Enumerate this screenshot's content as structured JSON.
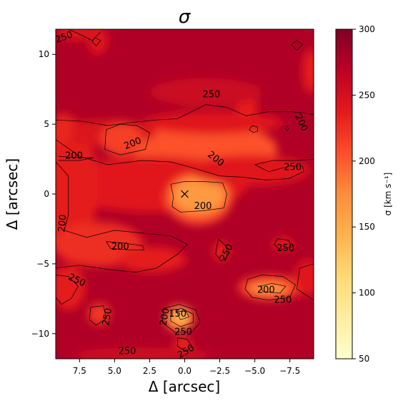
{
  "chart_data": {
    "type": "heatmap",
    "title": "σ",
    "xlabel": "Δ [arcsec]",
    "ylabel": "Δ [arcsec]",
    "xlim": [
      9.2,
      -9.2
    ],
    "ylim": [
      -11.8,
      11.8
    ],
    "x_ticks": [
      {
        "value": 7.5,
        "label": "7.5"
      },
      {
        "value": 5.0,
        "label": "5.0"
      },
      {
        "value": 2.5,
        "label": "2.5"
      },
      {
        "value": 0.0,
        "label": "0.0"
      },
      {
        "value": -2.5,
        "label": "−2.5"
      },
      {
        "value": -5.0,
        "label": "−5.0"
      },
      {
        "value": -7.5,
        "label": "−7.5"
      }
    ],
    "y_ticks": [
      {
        "value": 10,
        "label": "10"
      },
      {
        "value": 5,
        "label": "5"
      },
      {
        "value": 0,
        "label": "0"
      },
      {
        "value": -5,
        "label": "−5"
      },
      {
        "value": -10,
        "label": "−10"
      }
    ],
    "colorbar": {
      "label": "σ [km s⁻¹]",
      "range": [
        50,
        300
      ],
      "cmap": "YlOrRd",
      "ticks": [
        {
          "value": 300,
          "label": "300"
        },
        {
          "value": 250,
          "label": "250"
        },
        {
          "value": 200,
          "label": "200"
        },
        {
          "value": 150,
          "label": "150"
        },
        {
          "value": 100,
          "label": "100"
        },
        {
          "value": 50,
          "label": "50"
        }
      ]
    },
    "background_value": 275,
    "regions": [
      {
        "shape": "ellipse",
        "cx": -1.4,
        "cy": 3.2,
        "rx": 5.2,
        "ry": 1.9,
        "value": 205
      },
      {
        "shape": "ellipse",
        "cx": -2.0,
        "cy": 5.1,
        "rx": 5.0,
        "ry": 0.8,
        "value": 240
      },
      {
        "shape": "ellipse",
        "cx": 2.3,
        "cy": 0.7,
        "rx": 6.8,
        "ry": 2.0,
        "value": 240
      },
      {
        "shape": "ellipse",
        "cx": 8.4,
        "cy": 0.6,
        "rx": 2.2,
        "ry": 5.0,
        "value": 235
      },
      {
        "shape": "ellipse",
        "cx": 5.6,
        "cy": 4.4,
        "rx": 3.6,
        "ry": 0.9,
        "value": 245
      },
      {
        "shape": "ellipse",
        "cx": 4.5,
        "cy": 3.9,
        "rx": 1.5,
        "ry": 1.2,
        "value": 215
      },
      {
        "shape": "ellipse",
        "cx": 6.2,
        "cy": -3.6,
        "rx": 3.2,
        "ry": 1.6,
        "value": 225
      },
      {
        "shape": "ellipse",
        "cx": -1.0,
        "cy": -0.3,
        "rx": 2.4,
        "ry": 1.9,
        "value": 205
      },
      {
        "shape": "ellipse",
        "cx": -1.0,
        "cy": -0.1,
        "rx": 1.9,
        "ry": 1.3,
        "value": 165
      },
      {
        "shape": "ellipse",
        "cx": -4.6,
        "cy": 1.7,
        "rx": 4.3,
        "ry": 1.1,
        "value": 240
      },
      {
        "shape": "ellipse",
        "cx": 2.3,
        "cy": -4.7,
        "rx": 2.4,
        "ry": 0.9,
        "value": 235
      },
      {
        "shape": "ellipse",
        "cx": 8.3,
        "cy": -6.7,
        "rx": 1.2,
        "ry": 1.6,
        "value": 235
      },
      {
        "shape": "ellipse",
        "cx": -6.1,
        "cy": -6.7,
        "rx": 2.3,
        "ry": 0.9,
        "value": 215
      },
      {
        "shape": "ellipse",
        "cx": -6.0,
        "cy": -6.8,
        "rx": 1.4,
        "ry": 0.5,
        "value": 175
      },
      {
        "shape": "ellipse",
        "cx": 0.4,
        "cy": -8.9,
        "rx": 1.0,
        "ry": 0.9,
        "value": 170
      },
      {
        "shape": "ellipse",
        "cx": 0.2,
        "cy": -8.7,
        "rx": 0.5,
        "ry": 0.4,
        "value": 135
      },
      {
        "shape": "ellipse",
        "cx": 6.1,
        "cy": -8.6,
        "rx": 0.8,
        "ry": 0.8,
        "value": 220
      },
      {
        "shape": "ellipse",
        "cx": -8.8,
        "cy": -6.0,
        "rx": 1.0,
        "ry": 1.3,
        "value": 240
      },
      {
        "shape": "ellipse",
        "cx": -2.6,
        "cy": -4.1,
        "rx": 0.6,
        "ry": 0.7,
        "value": 235
      },
      {
        "shape": "ellipse",
        "cx": -7.0,
        "cy": -3.6,
        "rx": 0.8,
        "ry": 0.5,
        "value": 240
      },
      {
        "shape": "ellipse",
        "cx": 0.1,
        "cy": -10.8,
        "rx": 0.6,
        "ry": 0.6,
        "value": 230
      },
      {
        "shape": "ellipse",
        "cx": 8.7,
        "cy": 4.7,
        "rx": 0.7,
        "ry": 1.1,
        "value": 230
      },
      {
        "shape": "ellipse",
        "cx": 6.2,
        "cy": 11.0,
        "rx": 0.7,
        "ry": 1.0,
        "value": 240
      },
      {
        "shape": "ellipse",
        "cx": -4.4,
        "cy": 6.3,
        "rx": 0.8,
        "ry": 0.9,
        "value": 235
      },
      {
        "shape": "ellipse",
        "cx": -9.0,
        "cy": 8.8,
        "rx": 0.6,
        "ry": 1.6,
        "value": 235
      },
      {
        "shape": "ellipse",
        "cx": 3.0,
        "cy": -11.5,
        "rx": 5.0,
        "ry": 0.5,
        "value": 255
      },
      {
        "shape": "ellipse",
        "cx": 7.7,
        "cy": 11.6,
        "rx": 1.5,
        "ry": 0.6,
        "value": 245
      },
      {
        "shape": "ellipse",
        "cx": -1.5,
        "cy": 7.3,
        "rx": 4.0,
        "ry": 1.0,
        "value": 258
      }
    ],
    "contours": [
      {
        "level": 250,
        "points": [
          [
            9.2,
            5.3
          ],
          [
            7.2,
            5.2
          ],
          [
            5.5,
            4.9
          ],
          [
            4.0,
            5.1
          ],
          [
            2.0,
            5.3
          ],
          [
            0.5,
            5.4
          ],
          [
            -1.5,
            6.4
          ],
          [
            -3.0,
            6.2
          ],
          [
            -4.4,
            5.6
          ],
          [
            -6.0,
            5.9
          ],
          [
            -7.6,
            5.9
          ],
          [
            -9.2,
            5.7
          ]
        ]
      },
      {
        "level": 250,
        "points": [
          [
            9.2,
            3.9
          ],
          [
            7.5,
            2.7
          ],
          [
            5.5,
            2.1
          ],
          [
            3.0,
            2.4
          ],
          [
            1.0,
            2.3
          ],
          [
            -0.5,
            1.9
          ],
          [
            -2.5,
            1.3
          ],
          [
            -4.2,
            1.2
          ],
          [
            -5.8,
            1.0
          ],
          [
            -7.4,
            1.1
          ],
          [
            -8.5,
            1.6
          ],
          [
            -8.4,
            2.0
          ],
          [
            -7.5,
            2.0
          ],
          [
            -6.0,
            1.6
          ],
          [
            -5.0,
            2.1
          ],
          [
            -6.3,
            2.4
          ],
          [
            -8.0,
            2.4
          ],
          [
            -9.2,
            2.5
          ]
        ]
      },
      {
        "level": 200,
        "points": [
          [
            9.0,
            2.7
          ],
          [
            7.5,
            2.6
          ],
          [
            6.5,
            2.6
          ],
          [
            7.5,
            2.4
          ],
          [
            9.0,
            2.4
          ]
        ]
      },
      {
        "level": 250,
        "points": [
          [
            9.2,
            2.3
          ],
          [
            8.3,
            1.3
          ],
          [
            8.3,
            -1.5
          ],
          [
            8.6,
            -2.6
          ],
          [
            7.0,
            -3.1
          ],
          [
            5.0,
            -2.6
          ],
          [
            3.0,
            -2.8
          ],
          [
            1.0,
            -3.0
          ],
          [
            -0.2,
            -3.6
          ],
          [
            0.5,
            -4.3
          ],
          [
            2.0,
            -5.3
          ],
          [
            3.5,
            -5.6
          ],
          [
            5.5,
            -5.4
          ],
          [
            7.5,
            -5.1
          ],
          [
            9.2,
            -5.3
          ]
        ]
      },
      {
        "level": 200,
        "points": [
          [
            4.6,
            5.0
          ],
          [
            5.6,
            4.6
          ],
          [
            5.7,
            3.2
          ],
          [
            4.6,
            2.8
          ],
          [
            2.8,
            3.2
          ],
          [
            2.5,
            4.4
          ],
          [
            3.4,
            4.9
          ],
          [
            4.6,
            5.0
          ]
        ]
      },
      {
        "level": 200,
        "points": [
          [
            1.0,
            0.7
          ],
          [
            0.8,
            -0.2
          ],
          [
            0.9,
            -0.9
          ],
          [
            0.3,
            -1.3
          ],
          [
            -1.3,
            -1.2
          ],
          [
            -2.8,
            -1.0
          ],
          [
            -3.0,
            0.0
          ],
          [
            -2.7,
            0.8
          ],
          [
            -1.3,
            0.9
          ],
          [
            0.0,
            0.9
          ],
          [
            1.0,
            0.7
          ]
        ]
      },
      {
        "level": 200,
        "points": [
          [
            5.6,
            -3.4
          ],
          [
            4.5,
            -3.5
          ],
          [
            3.0,
            -3.7
          ],
          [
            2.9,
            -4.0
          ],
          [
            4.0,
            -4.0
          ],
          [
            5.3,
            -3.9
          ],
          [
            5.6,
            -3.4
          ]
        ]
      },
      {
        "level": 250,
        "points": [
          [
            -2.4,
            -3.2
          ],
          [
            -3.0,
            -3.8
          ],
          [
            -3.0,
            -4.5
          ],
          [
            -2.6,
            -4.8
          ],
          [
            -2.2,
            -4.3
          ],
          [
            -2.4,
            -3.2
          ]
        ]
      },
      {
        "level": 250,
        "points": [
          [
            -6.6,
            -3.2
          ],
          [
            -7.4,
            -3.3
          ],
          [
            -7.6,
            -3.8
          ],
          [
            -6.8,
            -4.0
          ],
          [
            -6.4,
            -3.6
          ],
          [
            -6.6,
            -3.2
          ]
        ]
      },
      {
        "level": 250,
        "points": [
          [
            -4.5,
            -6.1
          ],
          [
            -5.5,
            -5.8
          ],
          [
            -7.0,
            -5.9
          ],
          [
            -7.9,
            -6.5
          ],
          [
            -7.5,
            -7.4
          ],
          [
            -6.0,
            -7.6
          ],
          [
            -4.8,
            -7.4
          ],
          [
            -4.3,
            -6.8
          ],
          [
            -4.5,
            -6.1
          ]
        ]
      },
      {
        "level": 200,
        "points": [
          [
            -5.4,
            -6.6
          ],
          [
            -6.2,
            -6.4
          ],
          [
            -7.2,
            -6.6
          ],
          [
            -6.8,
            -7.1
          ],
          [
            -5.6,
            -7.0
          ],
          [
            -5.4,
            -6.6
          ]
        ]
      },
      {
        "level": 250,
        "points": [
          [
            -8.2,
            -5.3
          ],
          [
            -9.2,
            -5.0
          ],
          [
            -9.2,
            -7.6
          ],
          [
            -8.0,
            -6.8
          ],
          [
            -8.2,
            -5.3
          ]
        ]
      },
      {
        "level": 250,
        "points": [
          [
            9.2,
            -5.8
          ],
          [
            8.3,
            -5.9
          ],
          [
            7.6,
            -6.6
          ],
          [
            8.1,
            -7.5
          ],
          [
            8.8,
            -7.9
          ],
          [
            9.2,
            -7.4
          ]
        ]
      },
      {
        "level": 250,
        "points": [
          [
            6.7,
            -8.1
          ],
          [
            5.8,
            -8.0
          ],
          [
            5.6,
            -8.9
          ],
          [
            6.3,
            -9.4
          ],
          [
            6.8,
            -9.0
          ],
          [
            6.7,
            -8.1
          ]
        ]
      },
      {
        "level": 250,
        "points": [
          [
            1.5,
            -8.2
          ],
          [
            0.4,
            -7.9
          ],
          [
            -0.8,
            -8.3
          ],
          [
            -1.1,
            -9.2
          ],
          [
            -0.5,
            -9.9
          ],
          [
            0.7,
            -9.9
          ],
          [
            1.6,
            -9.2
          ],
          [
            1.5,
            -8.2
          ]
        ]
      },
      {
        "level": 200,
        "points": [
          [
            1.0,
            -8.3
          ],
          [
            0.2,
            -8.2
          ],
          [
            -0.6,
            -8.6
          ],
          [
            -0.6,
            -9.2
          ],
          [
            0.3,
            -9.5
          ],
          [
            1.0,
            -9.1
          ],
          [
            1.0,
            -8.3
          ]
        ]
      },
      {
        "level": 150,
        "points": [
          [
            0.6,
            -8.4
          ],
          [
            -0.1,
            -8.4
          ],
          [
            -0.3,
            -8.8
          ],
          [
            0.3,
            -9.0
          ],
          [
            0.6,
            -8.4
          ]
        ]
      },
      {
        "level": 250,
        "points": [
          [
            0.5,
            -10.3
          ],
          [
            -0.2,
            -10.4
          ],
          [
            -0.5,
            -10.9
          ],
          [
            -0.1,
            -11.3
          ],
          [
            0.5,
            -10.9
          ],
          [
            0.5,
            -10.3
          ]
        ]
      },
      {
        "level": 250,
        "points": [
          [
            8.3,
            11.8
          ],
          [
            7.4,
            11.4
          ],
          [
            6.6,
            11.0
          ],
          [
            6.0,
            11.6
          ]
        ]
      },
      {
        "level": 250,
        "points": [
          [
            6.4,
            11.2
          ],
          [
            6.0,
            11.0
          ],
          [
            6.3,
            10.6
          ],
          [
            6.6,
            10.9
          ],
          [
            6.4,
            11.2
          ]
        ]
      },
      {
        "level": 250,
        "points": [
          [
            -8.0,
            11.0
          ],
          [
            -8.4,
            10.7
          ],
          [
            -8.0,
            10.3
          ],
          [
            -7.6,
            10.7
          ],
          [
            -8.0,
            11.0
          ]
        ]
      },
      {
        "level": 250,
        "points": [
          [
            -4.8,
            4.9
          ],
          [
            -5.2,
            4.8
          ],
          [
            -5.2,
            4.5
          ],
          [
            -4.9,
            4.4
          ],
          [
            -4.6,
            4.6
          ],
          [
            -4.8,
            4.9
          ]
        ]
      },
      {
        "level": 250,
        "points": [
          [
            -7.3,
            4.9
          ],
          [
            -7.4,
            4.7
          ],
          [
            -7.3,
            4.5
          ],
          [
            -7.2,
            4.7
          ],
          [
            -7.3,
            4.9
          ]
        ]
      }
    ],
    "contour_labels": [
      {
        "text": "250",
        "x": 8.6,
        "y": 11.2,
        "angle": -20
      },
      {
        "text": "250",
        "x": -1.9,
        "y": 7.1,
        "angle": 0
      },
      {
        "text": "200",
        "x": 3.7,
        "y": 3.6,
        "angle": -22
      },
      {
        "text": "200",
        "x": 7.9,
        "y": 2.7,
        "angle": 0
      },
      {
        "text": "200",
        "x": -2.2,
        "y": 2.5,
        "angle": 38
      },
      {
        "text": "250",
        "x": -7.7,
        "y": 1.9,
        "angle": 0
      },
      {
        "text": "200",
        "x": -8.3,
        "y": 5.1,
        "angle": 65
      },
      {
        "text": "200",
        "x": -1.3,
        "y": -0.9,
        "angle": 0
      },
      {
        "text": "200",
        "x": 8.7,
        "y": -2.1,
        "angle": -85
      },
      {
        "text": "200",
        "x": 4.6,
        "y": -3.8,
        "angle": 0
      },
      {
        "text": "250",
        "x": -3.0,
        "y": -4.2,
        "angle": -62
      },
      {
        "text": "250",
        "x": -7.2,
        "y": -3.9,
        "angle": 0
      },
      {
        "text": "250",
        "x": 7.7,
        "y": -6.2,
        "angle": 25
      },
      {
        "text": "200",
        "x": -5.8,
        "y": -6.9,
        "angle": 0
      },
      {
        "text": "250",
        "x": -7.0,
        "y": -7.6,
        "angle": 0
      },
      {
        "text": "250",
        "x": 5.5,
        "y": -8.8,
        "angle": -80
      },
      {
        "text": "200",
        "x": 1.4,
        "y": -8.8,
        "angle": -80
      },
      {
        "text": "150",
        "x": 0.5,
        "y": -8.6,
        "angle": 0
      },
      {
        "text": "250",
        "x": 0.1,
        "y": -9.9,
        "angle": 0
      },
      {
        "text": "250",
        "x": -0.1,
        "y": -11.3,
        "angle": -30
      },
      {
        "text": "250",
        "x": 4.1,
        "y": -11.3,
        "angle": 0
      }
    ],
    "markers": [
      {
        "symbol": "x",
        "x": 0.0,
        "y": 0.0
      }
    ]
  }
}
